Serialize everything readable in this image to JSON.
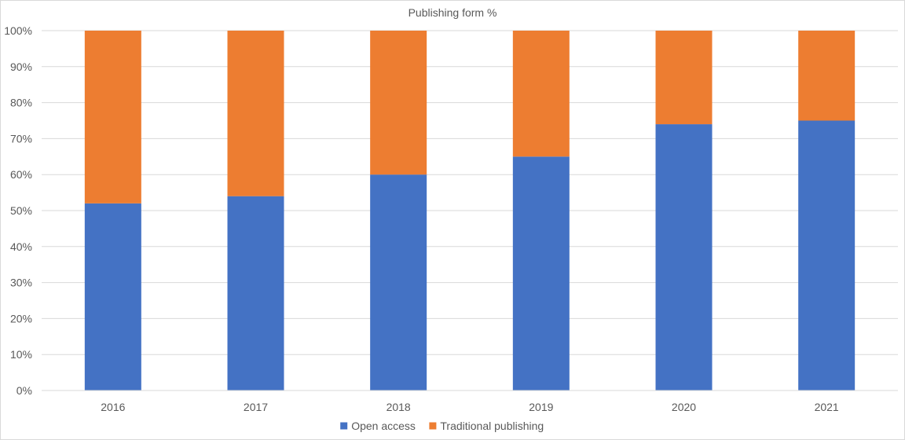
{
  "chart_data": {
    "type": "bar",
    "stacked": true,
    "title": "Publishing form %",
    "xlabel": "",
    "ylabel": "",
    "categories": [
      "2016",
      "2017",
      "2018",
      "2019",
      "2020",
      "2021"
    ],
    "series": [
      {
        "name": "Open access",
        "color": "#4472C4",
        "values": [
          52,
          54,
          60,
          65,
          74,
          75
        ]
      },
      {
        "name": "Traditional publishing",
        "color": "#ED7D31",
        "values": [
          48,
          46,
          40,
          35,
          26,
          25
        ]
      }
    ],
    "ylim": [
      0,
      100
    ],
    "y_ticks": [
      "0%",
      "10%",
      "20%",
      "30%",
      "40%",
      "50%",
      "60%",
      "70%",
      "80%",
      "90%",
      "100%"
    ],
    "grid": true,
    "legend_position": "bottom"
  }
}
